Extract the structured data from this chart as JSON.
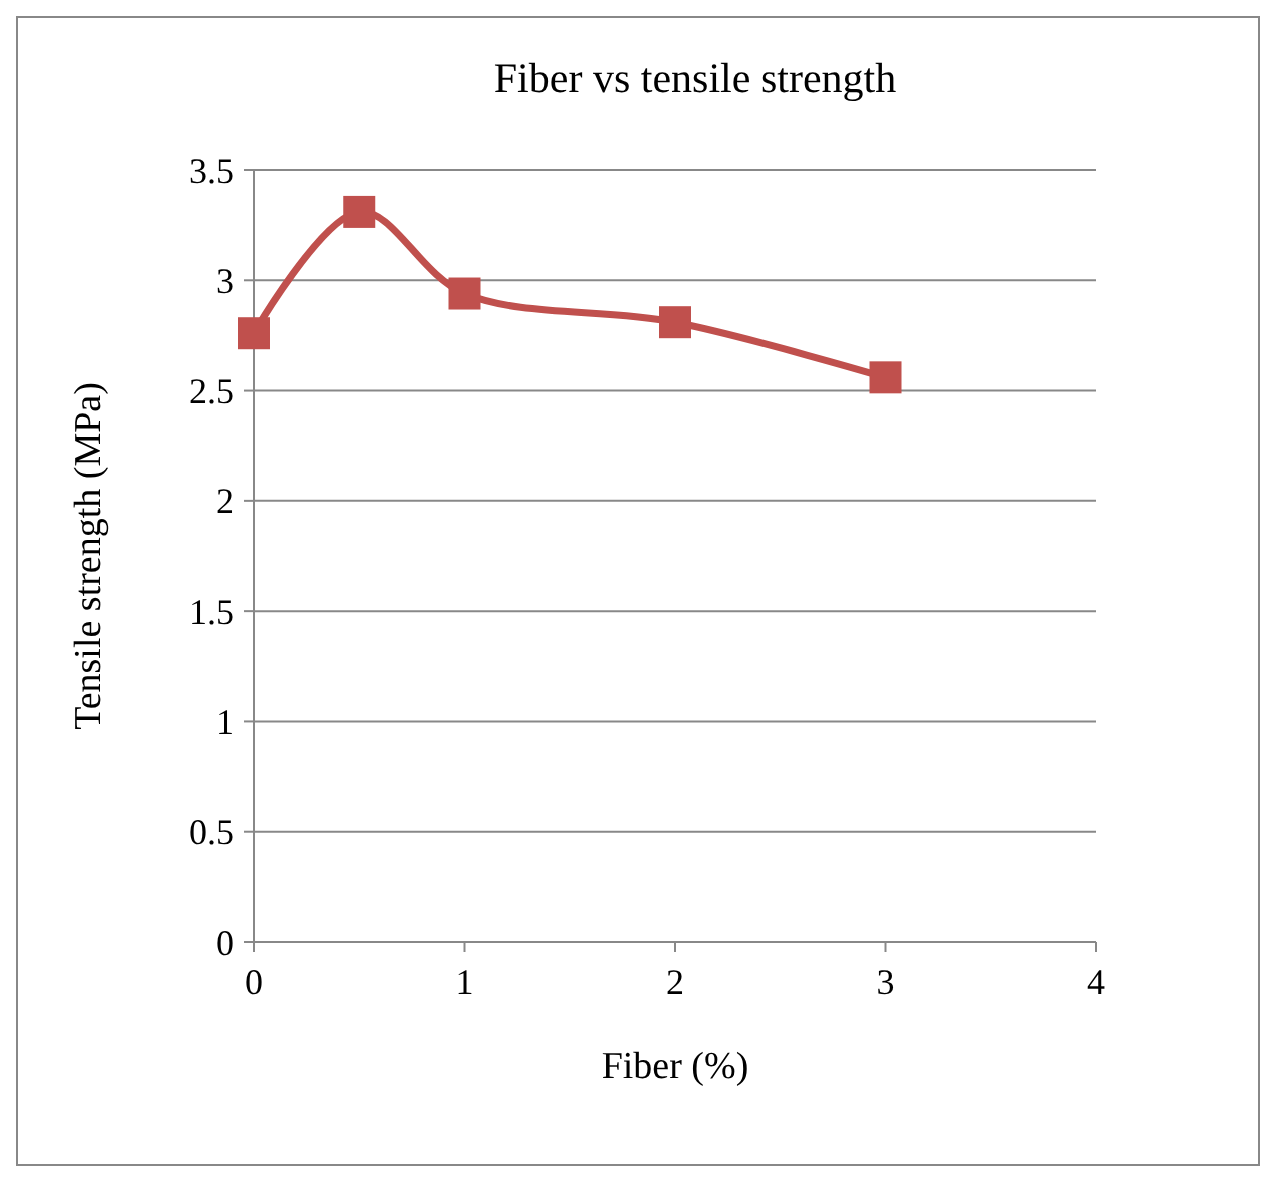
{
  "chart_data": {
    "type": "line",
    "title": "Fiber vs tensile strength",
    "xlabel": "Fiber (%)",
    "ylabel": "Tensile strength (MPa)",
    "x": [
      0,
      0.5,
      1,
      2,
      3
    ],
    "series": [
      {
        "color": "#c0504d",
        "values": [
          2.76,
          3.31,
          2.94,
          2.81,
          2.56
        ]
      }
    ],
    "xlim": [
      0,
      4
    ],
    "xticks": [
      0,
      1,
      2,
      3,
      4
    ],
    "ylim": [
      0,
      3.5
    ],
    "yticks": [
      0,
      0.5,
      1,
      1.5,
      2,
      2.5,
      3,
      3.5
    ],
    "grid": "y",
    "marker": "square",
    "line_style": "solid"
  }
}
